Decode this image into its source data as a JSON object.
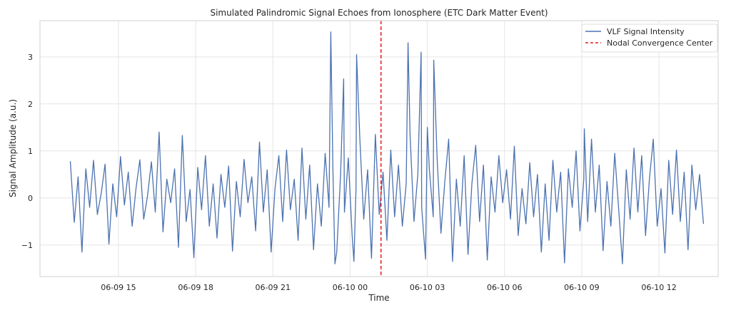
{
  "chart_data": {
    "type": "line",
    "title": "Simulated Palindromic Signal Echoes from Ionosphere (ETC Dark Matter Event)",
    "xlabel": "Time",
    "ylabel": "Signal Amplitude (a.u.)",
    "x_units": "hours since 06-09 00:00",
    "xlim": [
      11.95,
      38.3
    ],
    "ylim": [
      -1.67,
      3.77
    ],
    "grid": true,
    "legend_position": "top-right",
    "x_ticks": [
      {
        "value": 15,
        "label": "06-09 15"
      },
      {
        "value": 18,
        "label": "06-09 18"
      },
      {
        "value": 21,
        "label": "06-09 21"
      },
      {
        "value": 24,
        "label": "06-10 00"
      },
      {
        "value": 27,
        "label": "06-10 03"
      },
      {
        "value": 30,
        "label": "06-10 06"
      },
      {
        "value": 33,
        "label": "06-10 09"
      },
      {
        "value": 36,
        "label": "06-10 12"
      }
    ],
    "y_ticks": [
      {
        "value": -1,
        "label": "−1"
      },
      {
        "value": 0,
        "label": "0"
      },
      {
        "value": 1,
        "label": "1"
      },
      {
        "value": 2,
        "label": "2"
      },
      {
        "value": 3,
        "label": "3"
      }
    ],
    "series": [
      {
        "name": "VLF Signal Intensity",
        "color": "#4c72b0",
        "x_start": 13.13,
        "x_step": 0.15,
        "values": [
          0.78,
          -0.52,
          0.45,
          -1.15,
          0.62,
          -0.2,
          0.8,
          -0.35,
          0.1,
          0.72,
          -0.98,
          0.3,
          -0.4,
          0.88,
          -0.15,
          0.55,
          -0.6,
          0.2,
          0.81,
          -0.45,
          0.05,
          0.77,
          -0.3,
          1.4,
          -0.72,
          0.4,
          -0.1,
          0.62,
          -1.05,
          1.33,
          -0.5,
          0.18,
          -1.27,
          0.65,
          -0.25,
          0.9,
          -0.6,
          0.3,
          -0.85,
          0.5,
          -0.2,
          0.68,
          -1.13,
          0.35,
          -0.4,
          0.82,
          -0.1,
          0.45,
          -0.7,
          1.19,
          -0.3,
          0.6,
          -1.15,
          0.2,
          0.9,
          -0.5,
          1.02,
          -0.25,
          0.4,
          -0.9,
          1.06,
          -0.45,
          0.7,
          -1.1,
          0.3,
          -0.6,
          0.95,
          -0.2,
          0.66,
          -1.15,
          0.5,
          -0.3,
          0.85,
          -0.8,
          0.2,
          1.25,
          -0.45,
          0.6,
          -1.28,
          1.35,
          -0.35,
          0.55,
          -0.9,
          1.02,
          -0.4,
          0.7,
          -0.6,
          0.3,
          1.35,
          -0.5,
          0.5,
          -0.2,
          -1.3,
          0.6,
          -0.4,
          0.85,
          -0.75,
          0.35,
          1.25,
          -1.35,
          0.4,
          -0.6,
          0.9,
          -1.2,
          0.3,
          1.12,
          -0.5,
          0.7,
          -1.32,
          0.45,
          -0.3,
          0.9,
          -0.1,
          0.6,
          -0.45,
          1.1,
          -0.8,
          0.2,
          -0.55,
          0.75,
          -0.4,
          0.5,
          -1.15,
          0.3,
          -0.9,
          0.8,
          -0.3,
          0.55,
          -1.38,
          0.62,
          -0.2,
          1.0,
          -0.7,
          0.4,
          -0.5,
          1.25,
          -0.3,
          0.7,
          -1.12,
          0.35,
          -0.6,
          0.95,
          -0.2,
          -1.4,
          0.6,
          -0.45,
          1.06,
          -0.3,
          0.9,
          -0.8,
          0.4,
          1.25,
          -0.6,
          0.2,
          -1.17,
          0.8,
          -0.35,
          1.02,
          -0.5,
          0.55,
          -1.1,
          0.7,
          -0.25,
          0.5,
          -0.55
        ]
      }
    ],
    "spikes": [
      {
        "x": 23.25,
        "y": 3.53
      },
      {
        "x": 23.41,
        "y": -1.4
      },
      {
        "x": 23.75,
        "y": 2.53
      },
      {
        "x": 24.15,
        "y": -1.35
      },
      {
        "x": 24.25,
        "y": 3.05
      },
      {
        "x": 26.25,
        "y": 3.3
      },
      {
        "x": 26.76,
        "y": 3.1
      },
      {
        "x": 27.0,
        "y": 1.5
      },
      {
        "x": 27.25,
        "y": 2.93
      },
      {
        "x": 33.1,
        "y": 1.47
      }
    ],
    "vlines": [
      {
        "name": "Nodal Convergence Center",
        "x": 25.2,
        "color": "#e41a1c",
        "style": "dashed"
      }
    ]
  }
}
